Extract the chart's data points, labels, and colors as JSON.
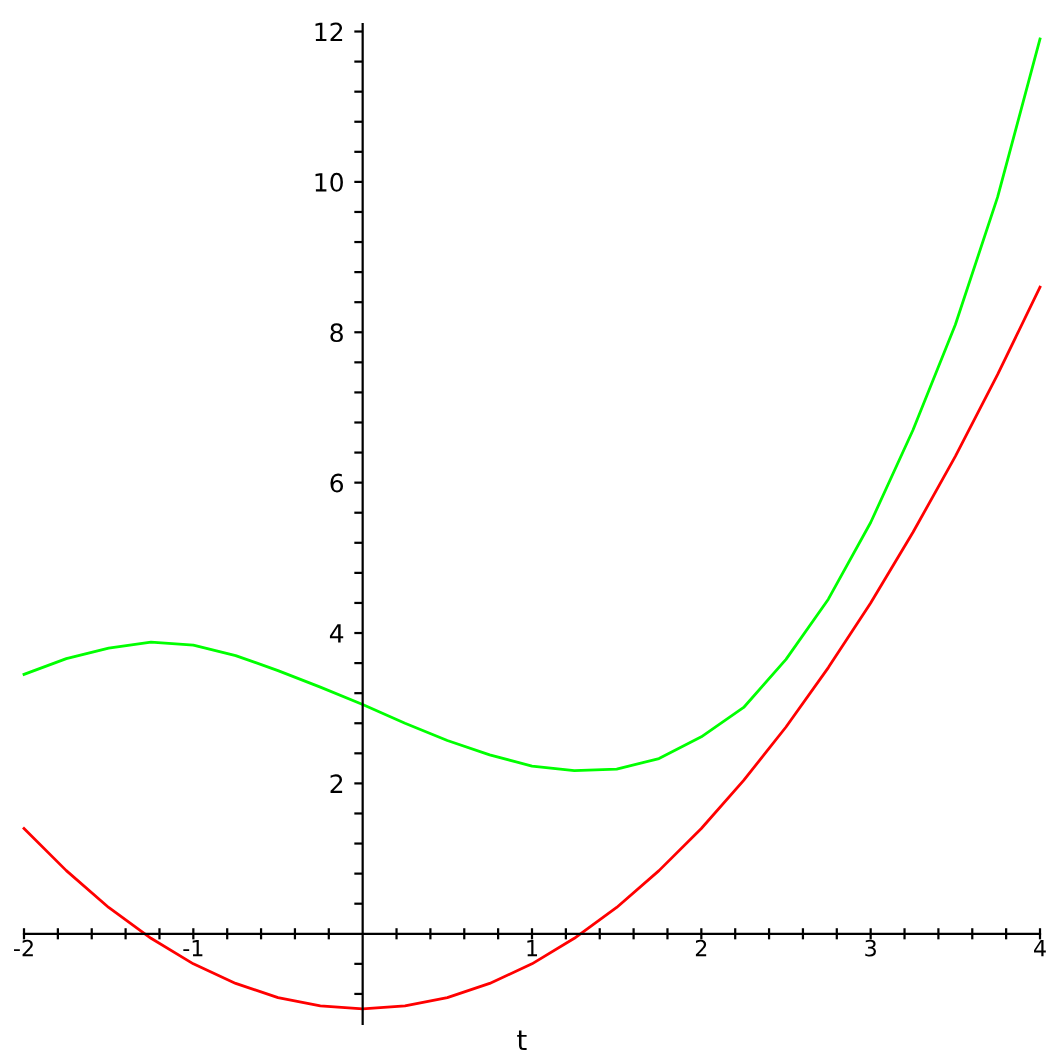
{
  "chart_data": {
    "type": "line",
    "xlabel": "t",
    "xlim": [
      -2,
      4
    ],
    "ylim": [
      -1.2,
      12.1
    ],
    "xticks": [
      -2,
      {
        "value": -1.8,
        "label": null
      },
      {
        "value": -1.6,
        "label": null
      },
      {
        "value": -1.4,
        "label": null
      },
      {
        "value": -1.2,
        "label": null
      },
      -1,
      {
        "value": -0.8,
        "label": null
      },
      {
        "value": -0.6,
        "label": null
      },
      {
        "value": -0.4,
        "label": null
      },
      {
        "value": -0.2,
        "label": null
      },
      {
        "value": 0.2,
        "label": null
      },
      {
        "value": 0.4,
        "label": null
      },
      {
        "value": 0.6,
        "label": null
      },
      {
        "value": 0.8,
        "label": null
      },
      1,
      {
        "value": 1.2,
        "label": null
      },
      {
        "value": 1.4,
        "label": null
      },
      {
        "value": 1.6,
        "label": null
      },
      {
        "value": 1.8,
        "label": null
      },
      2,
      {
        "value": 2.2,
        "label": null
      },
      {
        "value": 2.4,
        "label": null
      },
      {
        "value": 2.6,
        "label": null
      },
      {
        "value": 2.8,
        "label": null
      },
      3,
      {
        "value": 3.2,
        "label": null
      },
      {
        "value": 3.4,
        "label": null
      },
      {
        "value": 3.6,
        "label": null
      },
      {
        "value": 3.8,
        "label": null
      },
      4
    ],
    "yticks": [
      {
        "value": -0.8,
        "label": null
      },
      {
        "value": -0.4,
        "label": null
      },
      {
        "value": 0.4,
        "label": null
      },
      {
        "value": 0.8,
        "label": null
      },
      {
        "value": 1.2,
        "label": null
      },
      {
        "value": 1.6,
        "label": null
      },
      2,
      {
        "value": 2.4,
        "label": null
      },
      {
        "value": 2.8,
        "label": null
      },
      {
        "value": 3.2,
        "label": null
      },
      {
        "value": 3.6,
        "label": null
      },
      4,
      {
        "value": 4.4,
        "label": null
      },
      {
        "value": 4.8,
        "label": null
      },
      {
        "value": 5.2,
        "label": null
      },
      {
        "value": 5.6,
        "label": null
      },
      6,
      {
        "value": 6.4,
        "label": null
      },
      {
        "value": 6.8,
        "label": null
      },
      {
        "value": 7.2,
        "label": null
      },
      {
        "value": 7.6,
        "label": null
      },
      8,
      {
        "value": 8.4,
        "label": null
      },
      {
        "value": 8.8,
        "label": null
      },
      {
        "value": 9.2,
        "label": null
      },
      {
        "value": 9.6,
        "label": null
      },
      10,
      {
        "value": 10.4,
        "label": null
      },
      {
        "value": 10.8,
        "label": null
      },
      {
        "value": 11.2,
        "label": null
      },
      {
        "value": 11.6,
        "label": null
      },
      12
    ],
    "x": [
      -2,
      -1.75,
      -1.5,
      -1.25,
      -1,
      -0.75,
      -0.5,
      -0.25,
      0,
      0.25,
      0.5,
      0.75,
      1,
      1.25,
      1.5,
      1.75,
      2,
      2.25,
      2.5,
      2.75,
      3,
      3.25,
      3.5,
      3.75,
      4
    ],
    "grid": false,
    "legend": false,
    "marker": "none",
    "line_style": "solid",
    "series": [
      {
        "color": "#ff0000",
        "values": [
          1.4,
          0.84,
          0.35,
          -0.06,
          -0.4,
          -0.66,
          -0.85,
          -0.96,
          -1.0,
          -0.96,
          -0.85,
          -0.66,
          -0.4,
          -0.06,
          0.35,
          0.84,
          1.4,
          2.04,
          2.75,
          3.54,
          4.4,
          5.34,
          6.35,
          7.44,
          8.6
        ]
      },
      {
        "color": "#00ff00",
        "values": [
          3.45,
          3.66,
          3.8,
          3.88,
          3.84,
          3.7,
          3.5,
          3.28,
          3.05,
          2.8,
          2.57,
          2.38,
          2.23,
          2.17,
          2.19,
          2.33,
          2.62,
          3.01,
          3.65,
          4.45,
          5.47,
          6.7,
          8.1,
          9.8,
          11.9
        ]
      }
    ]
  }
}
